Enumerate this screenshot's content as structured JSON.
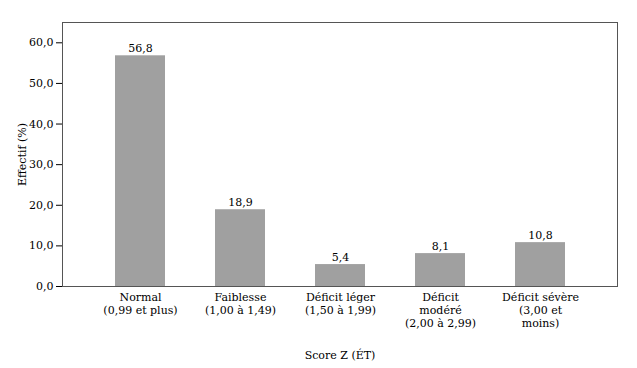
{
  "chart_data": {
    "type": "bar",
    "categories": [
      "Normal\n(0,99 et plus)",
      "Faiblesse\n(1,00 à 1,49)",
      "Déficit léger\n(1,50 à 1,99)",
      "Déficit\nmodéré\n(2,00 à 2,99)",
      "Déficit sévère\n(3,00 et\nmoins)"
    ],
    "values": [
      56.8,
      18.9,
      5.4,
      8.1,
      10.8
    ],
    "value_labels": [
      "56,8",
      "18,9",
      "5,4",
      "8,1",
      "10,8"
    ],
    "data_labels": true,
    "color": "#a0a0a0",
    "xlabel": "Score Z (ÉT)",
    "ylabel": "Effectif (%)",
    "ylim": [
      0,
      65
    ],
    "yticks": [
      {
        "value": 0,
        "label": "0,0"
      },
      {
        "value": 10,
        "label": "10,0"
      },
      {
        "value": 20,
        "label": "20,0"
      },
      {
        "value": 30,
        "label": "30,0"
      },
      {
        "value": 40,
        "label": "40,0"
      },
      {
        "value": 50,
        "label": "50,0"
      },
      {
        "value": 60,
        "label": "60,0"
      }
    ],
    "grid": false
  }
}
